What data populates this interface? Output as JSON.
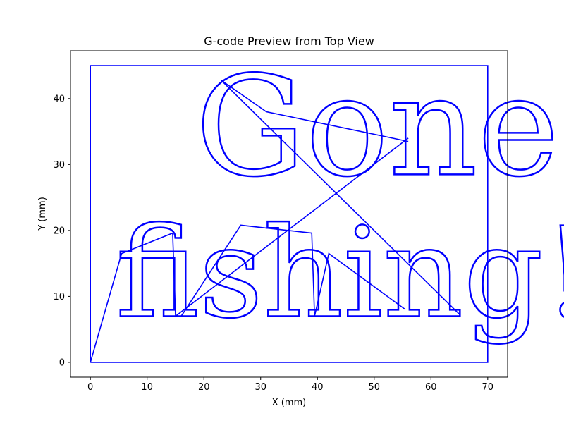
{
  "chart_data": {
    "type": "line",
    "title": "G-code Preview from Top View",
    "xlabel": "X (mm)",
    "ylabel": "Y (mm)",
    "xlim": [
      -3.5,
      73.5
    ],
    "ylim": [
      -2.25,
      47.25
    ],
    "xticks": [
      0,
      10,
      20,
      30,
      40,
      50,
      60,
      70
    ],
    "yticks": [
      0,
      10,
      20,
      30,
      40
    ],
    "grid": false,
    "legend": "none",
    "line_color": "#0000ff",
    "engraved_text": [
      {
        "text": "Gone",
        "x": 18.5,
        "y": 28.5,
        "height": 15.5
      },
      {
        "text": "fishing!",
        "x": 4.5,
        "y": 7,
        "height": 14
      }
    ],
    "series": [
      {
        "points": [
          [
            0,
            0
          ],
          [
            0,
            45
          ],
          [
            70,
            45
          ],
          [
            70,
            0
          ],
          [
            0,
            0
          ]
        ]
      },
      {
        "points": [
          [
            0,
            0
          ],
          [
            5.5,
            16.5
          ],
          [
            14.5,
            19.6
          ]
        ]
      },
      {
        "points": [
          [
            14.5,
            19.6
          ],
          [
            15,
            7
          ],
          [
            56,
            34
          ]
        ]
      },
      {
        "points": [
          [
            56,
            33.5
          ],
          [
            31,
            38
          ],
          [
            23,
            42.8
          ],
          [
            65,
            7.3
          ]
        ]
      },
      {
        "points": [
          [
            16,
            7
          ],
          [
            26.5,
            20.8
          ],
          [
            39,
            19.6
          ]
        ]
      },
      {
        "points": [
          [
            39,
            19.6
          ],
          [
            39.5,
            7
          ],
          [
            42,
            16.5
          ],
          [
            55.5,
            8
          ]
        ]
      }
    ]
  }
}
